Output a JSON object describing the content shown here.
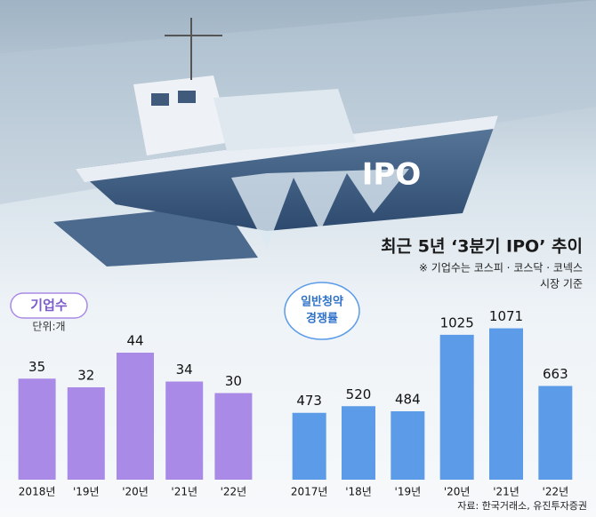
{
  "title": "최근 5년 ‘3분기 IPO’ 추이",
  "note": [
    "※ 기업수는 코스피 · 코스닥 · 코넥스",
    "시장 기준"
  ],
  "boat_label": "IPO",
  "source": "자료: 한국거래소, 유진투자증권",
  "chart_data": [
    {
      "type": "bar",
      "title": [
        "기업수"
      ],
      "unit": "단위:개",
      "categories": [
        "2018년",
        "'19년",
        "'20년",
        "'21년",
        "'22년"
      ],
      "values": [
        35,
        32,
        44,
        34,
        30
      ],
      "color": "#a98ae6",
      "ylim": [
        0,
        50
      ]
    },
    {
      "type": "bar",
      "title": [
        "일반청약",
        "경쟁률"
      ],
      "categories": [
        "2017년",
        "'18년",
        "'19년",
        "'20년",
        "'21년",
        "'22년"
      ],
      "values": [
        473,
        520,
        484,
        1025,
        1071,
        663
      ],
      "color": "#5b9be8",
      "ylim": [
        0,
        1150
      ]
    }
  ]
}
